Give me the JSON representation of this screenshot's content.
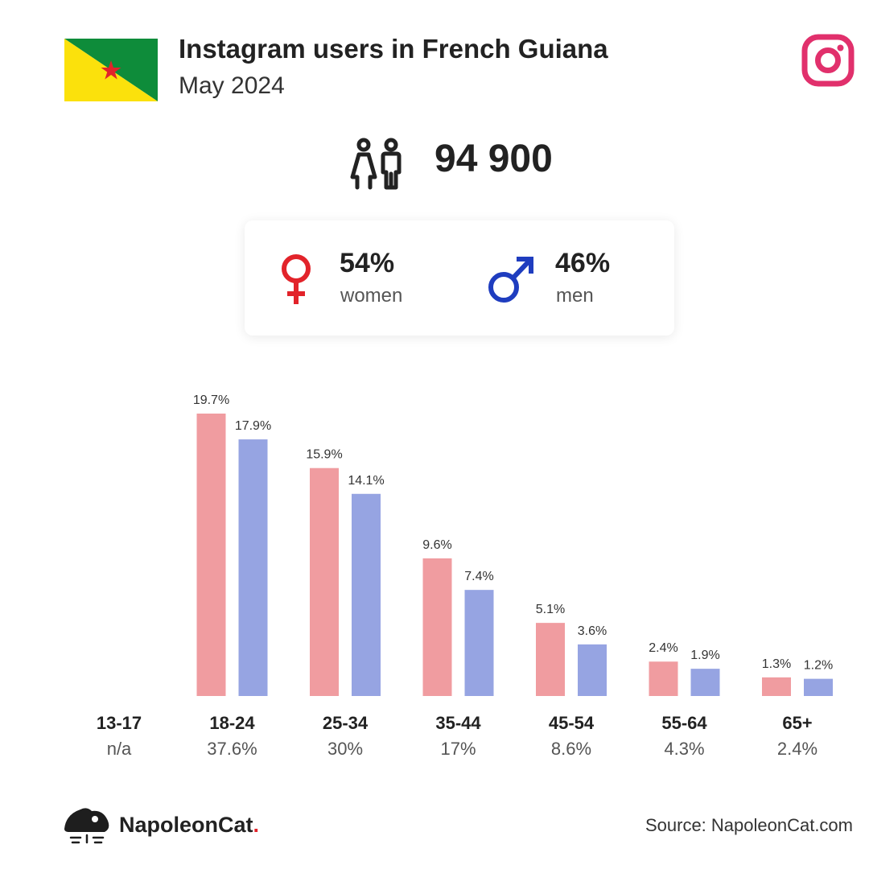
{
  "header": {
    "title": "Instagram users in French Guiana",
    "subtitle": "May 2024"
  },
  "total_users": "94 900",
  "gender": {
    "women": {
      "percent": "54%",
      "label": "women"
    },
    "men": {
      "percent": "46%",
      "label": "men"
    }
  },
  "colors": {
    "women_bar": "#f09ca0",
    "men_bar": "#96a4e2",
    "women_symbol": "#e2232a",
    "men_symbol": "#1f3dbf",
    "instagram": "#e1306c"
  },
  "icons": [
    "french-guiana-flag",
    "instagram-icon",
    "users-icon",
    "female-symbol-icon",
    "male-symbol-icon",
    "napoleoncat-logo"
  ],
  "chart_data": {
    "type": "bar",
    "categories": [
      "13-17",
      "18-24",
      "25-34",
      "35-44",
      "45-54",
      "55-64",
      "65+"
    ],
    "totals": [
      "n/a",
      "37.6%",
      "30%",
      "17%",
      "8.6%",
      "4.3%",
      "2.4%"
    ],
    "series": [
      {
        "values": [
          null,
          19.7,
          15.9,
          9.6,
          5.1,
          2.4,
          1.3
        ],
        "labels": [
          "",
          "19.7%",
          "15.9%",
          "9.6%",
          "5.1%",
          "2.4%",
          "1.3%"
        ]
      },
      {
        "values": [
          null,
          17.9,
          14.1,
          7.4,
          3.6,
          1.9,
          1.2
        ],
        "labels": [
          "",
          "17.9%",
          "14.1%",
          "7.4%",
          "3.6%",
          "1.9%",
          "1.2%"
        ]
      }
    ],
    "ylim": [
      0,
      19.7
    ],
    "grid": false,
    "legend": "none"
  },
  "footer": {
    "brand": "NapoleonCat",
    "brand_dot": ".",
    "source": "Source: NapoleonCat.com"
  }
}
